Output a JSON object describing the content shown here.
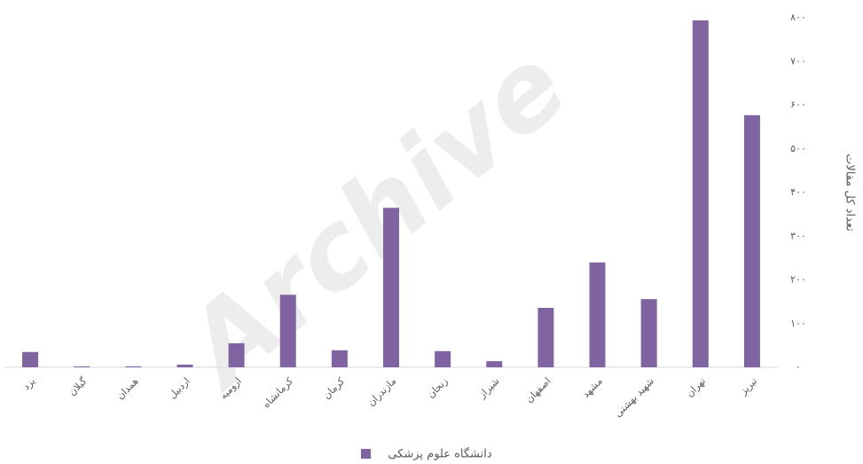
{
  "chart_data": {
    "type": "bar",
    "watermark": "Archive",
    "y_axis_label": "تعداد کل مقالات",
    "categories": [
      "یزد",
      "گیلان",
      "همدان",
      "اردبیل",
      "ارومیه",
      "کرمانشاه",
      "کرمان",
      "مازندران",
      "زنجان",
      "شیراز",
      "اصفهان",
      "مشهد",
      "شهید بهشتی",
      "تهران",
      "تبریز"
    ],
    "series": [
      {
        "name": "دانشگاه علوم پزشکی",
        "color": "#8064a2",
        "values": [
          35,
          2,
          2,
          6,
          55,
          166,
          39,
          365,
          37,
          14,
          136,
          240,
          156,
          794,
          577
        ]
      }
    ],
    "ylim": [
      0,
      800
    ],
    "yticks": [
      {
        "value": 0,
        "label": "۰"
      },
      {
        "value": 100,
        "label": "۱۰۰"
      },
      {
        "value": 200,
        "label": "۲۰۰"
      },
      {
        "value": 300,
        "label": "۳۰۰"
      },
      {
        "value": 400,
        "label": "۴۰۰"
      },
      {
        "value": 500,
        "label": "۵۰۰"
      },
      {
        "value": 600,
        "label": "۶۰۰"
      },
      {
        "value": 700,
        "label": "۷۰۰"
      },
      {
        "value": 800,
        "label": "۸۰۰"
      }
    ],
    "grid": false,
    "legend": "bottom"
  }
}
